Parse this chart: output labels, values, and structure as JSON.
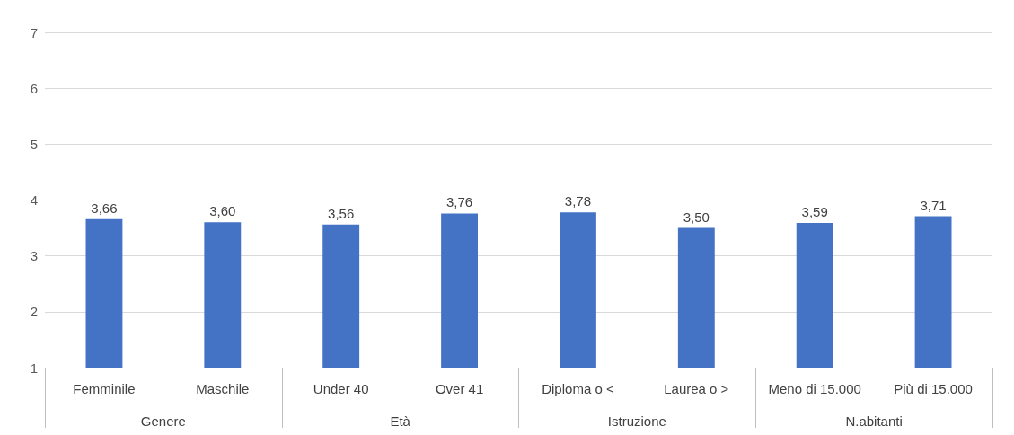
{
  "chart_data": {
    "type": "bar",
    "categories": [
      "Femminile",
      "Maschile",
      "Under 40",
      "Over 41",
      "Diploma o <",
      "Laurea o >",
      "Meno di 15.000",
      "Più di 15.000"
    ],
    "values": [
      3.66,
      3.6,
      3.56,
      3.76,
      3.78,
      3.5,
      3.59,
      3.71
    ],
    "value_labels": [
      "3,66",
      "3,60",
      "3,56",
      "3,76",
      "3,78",
      "3,50",
      "3,59",
      "3,71"
    ],
    "color": "#4472c4",
    "annotations": [
      "Genere",
      "Età",
      "Istruzione",
      "N.abitanti"
    ],
    "ylim": [
      1,
      7
    ],
    "yticks": [
      1,
      2,
      3,
      4,
      5,
      6,
      7
    ],
    "grid": "y"
  }
}
